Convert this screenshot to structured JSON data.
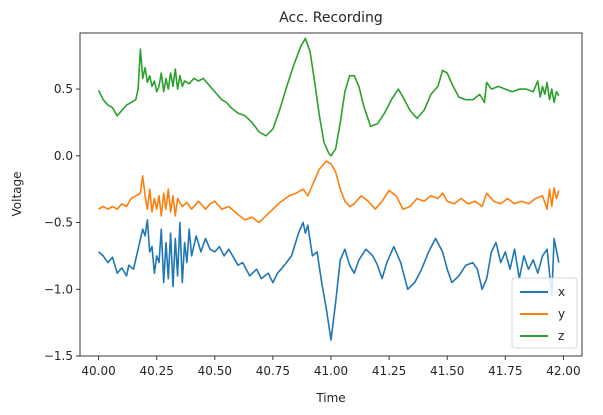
{
  "chart_data": {
    "type": "line",
    "title": "Acc. Recording",
    "xlabel": "Time",
    "ylabel": "Voltage",
    "xlim": [
      39.92,
      42.08
    ],
    "ylim": [
      -1.5,
      0.92
    ],
    "x_ticks": [
      40.0,
      40.25,
      40.5,
      40.75,
      41.0,
      41.25,
      41.5,
      41.75,
      42.0
    ],
    "x_tick_labels": [
      "40.00",
      "40.25",
      "40.50",
      "40.75",
      "41.00",
      "41.25",
      "41.50",
      "41.75",
      "42.00"
    ],
    "y_ticks": [
      -1.5,
      -1.0,
      -0.5,
      0.0,
      0.5
    ],
    "y_tick_labels": [
      "−1.5",
      "−1.0",
      "−0.5",
      "0.0",
      "0.5"
    ],
    "grid": false,
    "legend_position": "bottom-right",
    "series": [
      {
        "name": "x",
        "color": "#1f77b4",
        "points": [
          [
            40.0,
            -0.72
          ],
          [
            40.02,
            -0.75
          ],
          [
            40.04,
            -0.8
          ],
          [
            40.06,
            -0.76
          ],
          [
            40.08,
            -0.88
          ],
          [
            40.1,
            -0.84
          ],
          [
            40.12,
            -0.9
          ],
          [
            40.13,
            -0.82
          ],
          [
            40.15,
            -0.85
          ],
          [
            40.17,
            -0.7
          ],
          [
            40.19,
            -0.55
          ],
          [
            40.2,
            -0.6
          ],
          [
            40.21,
            -0.48
          ],
          [
            40.22,
            -0.72
          ],
          [
            40.23,
            -0.68
          ],
          [
            40.24,
            -0.88
          ],
          [
            40.25,
            -0.75
          ],
          [
            40.26,
            -0.8
          ],
          [
            40.27,
            -0.55
          ],
          [
            40.28,
            -0.95
          ],
          [
            40.29,
            -0.65
          ],
          [
            40.3,
            -0.92
          ],
          [
            40.31,
            -0.58
          ],
          [
            40.32,
            -0.98
          ],
          [
            40.33,
            -0.62
          ],
          [
            40.34,
            -0.9
          ],
          [
            40.35,
            -0.5
          ],
          [
            40.36,
            -0.95
          ],
          [
            40.37,
            -0.65
          ],
          [
            40.38,
            -0.8
          ],
          [
            40.39,
            -0.55
          ],
          [
            40.4,
            -0.75
          ],
          [
            40.42,
            -0.6
          ],
          [
            40.44,
            -0.72
          ],
          [
            40.46,
            -0.62
          ],
          [
            40.48,
            -0.7
          ],
          [
            40.5,
            -0.72
          ],
          [
            40.52,
            -0.68
          ],
          [
            40.54,
            -0.75
          ],
          [
            40.56,
            -0.7
          ],
          [
            40.58,
            -0.76
          ],
          [
            40.6,
            -0.82
          ],
          [
            40.62,
            -0.8
          ],
          [
            40.65,
            -0.9
          ],
          [
            40.68,
            -0.85
          ],
          [
            40.7,
            -0.92
          ],
          [
            40.73,
            -0.88
          ],
          [
            40.75,
            -0.95
          ],
          [
            40.77,
            -0.88
          ],
          [
            40.8,
            -0.82
          ],
          [
            40.83,
            -0.75
          ],
          [
            40.86,
            -0.58
          ],
          [
            40.88,
            -0.5
          ],
          [
            40.89,
            -0.58
          ],
          [
            40.9,
            -0.52
          ],
          [
            40.92,
            -0.75
          ],
          [
            40.94,
            -0.72
          ],
          [
            40.96,
            -0.95
          ],
          [
            40.98,
            -1.15
          ],
          [
            41.0,
            -1.38
          ],
          [
            41.02,
            -1.1
          ],
          [
            41.04,
            -0.78
          ],
          [
            41.06,
            -0.7
          ],
          [
            41.08,
            -0.82
          ],
          [
            41.1,
            -0.88
          ],
          [
            41.12,
            -0.78
          ],
          [
            41.15,
            -0.7
          ],
          [
            41.18,
            -0.75
          ],
          [
            41.2,
            -0.82
          ],
          [
            41.22,
            -0.92
          ],
          [
            41.24,
            -0.8
          ],
          [
            41.27,
            -0.68
          ],
          [
            41.3,
            -0.8
          ],
          [
            41.33,
            -1.0
          ],
          [
            41.36,
            -0.95
          ],
          [
            41.39,
            -0.85
          ],
          [
            41.42,
            -0.72
          ],
          [
            41.45,
            -0.62
          ],
          [
            41.48,
            -0.72
          ],
          [
            41.5,
            -0.85
          ],
          [
            41.52,
            -0.95
          ],
          [
            41.55,
            -0.9
          ],
          [
            41.58,
            -0.82
          ],
          [
            41.61,
            -0.8
          ],
          [
            41.63,
            -0.85
          ],
          [
            41.65,
            -1.0
          ],
          [
            41.67,
            -0.92
          ],
          [
            41.69,
            -0.72
          ],
          [
            41.71,
            -0.65
          ],
          [
            41.73,
            -0.8
          ],
          [
            41.75,
            -0.72
          ],
          [
            41.77,
            -0.85
          ],
          [
            41.79,
            -0.7
          ],
          [
            41.81,
            -0.92
          ],
          [
            41.83,
            -0.75
          ],
          [
            41.85,
            -0.85
          ],
          [
            41.87,
            -0.78
          ],
          [
            41.89,
            -0.88
          ],
          [
            41.91,
            -0.75
          ],
          [
            41.93,
            -0.7
          ],
          [
            41.95,
            -1.05
          ],
          [
            41.96,
            -0.62
          ],
          [
            41.98,
            -0.8
          ]
        ]
      },
      {
        "name": "y",
        "color": "#ff7f0e",
        "points": [
          [
            40.0,
            -0.4
          ],
          [
            40.02,
            -0.38
          ],
          [
            40.04,
            -0.4
          ],
          [
            40.06,
            -0.38
          ],
          [
            40.08,
            -0.4
          ],
          [
            40.1,
            -0.36
          ],
          [
            40.12,
            -0.38
          ],
          [
            40.14,
            -0.32
          ],
          [
            40.16,
            -0.3
          ],
          [
            40.18,
            -0.28
          ],
          [
            40.19,
            -0.15
          ],
          [
            40.2,
            -0.3
          ],
          [
            40.21,
            -0.4
          ],
          [
            40.22,
            -0.25
          ],
          [
            40.23,
            -0.42
          ],
          [
            40.24,
            -0.32
          ],
          [
            40.25,
            -0.4
          ],
          [
            40.26,
            -0.3
          ],
          [
            40.27,
            -0.45
          ],
          [
            40.28,
            -0.28
          ],
          [
            40.29,
            -0.4
          ],
          [
            40.3,
            -0.25
          ],
          [
            40.31,
            -0.42
          ],
          [
            40.32,
            -0.3
          ],
          [
            40.33,
            -0.45
          ],
          [
            40.34,
            -0.32
          ],
          [
            40.36,
            -0.38
          ],
          [
            40.38,
            -0.35
          ],
          [
            40.4,
            -0.4
          ],
          [
            40.43,
            -0.34
          ],
          [
            40.46,
            -0.4
          ],
          [
            40.48,
            -0.36
          ],
          [
            40.5,
            -0.34
          ],
          [
            40.53,
            -0.4
          ],
          [
            40.56,
            -0.38
          ],
          [
            40.6,
            -0.44
          ],
          [
            40.63,
            -0.48
          ],
          [
            40.66,
            -0.46
          ],
          [
            40.69,
            -0.5
          ],
          [
            40.72,
            -0.45
          ],
          [
            40.75,
            -0.4
          ],
          [
            40.78,
            -0.35
          ],
          [
            40.82,
            -0.3
          ],
          [
            40.85,
            -0.28
          ],
          [
            40.88,
            -0.25
          ],
          [
            40.9,
            -0.3
          ],
          [
            40.92,
            -0.22
          ],
          [
            40.95,
            -0.1
          ],
          [
            40.98,
            -0.04
          ],
          [
            41.0,
            -0.06
          ],
          [
            41.02,
            -0.12
          ],
          [
            41.04,
            -0.25
          ],
          [
            41.06,
            -0.34
          ],
          [
            41.08,
            -0.38
          ],
          [
            41.1,
            -0.36
          ],
          [
            41.13,
            -0.3
          ],
          [
            41.16,
            -0.34
          ],
          [
            41.19,
            -0.4
          ],
          [
            41.22,
            -0.34
          ],
          [
            41.25,
            -0.26
          ],
          [
            41.28,
            -0.3
          ],
          [
            41.31,
            -0.4
          ],
          [
            41.34,
            -0.38
          ],
          [
            41.37,
            -0.32
          ],
          [
            41.4,
            -0.34
          ],
          [
            41.43,
            -0.3
          ],
          [
            41.46,
            -0.32
          ],
          [
            41.48,
            -0.28
          ],
          [
            41.5,
            -0.34
          ],
          [
            41.53,
            -0.36
          ],
          [
            41.56,
            -0.32
          ],
          [
            41.59,
            -0.36
          ],
          [
            41.62,
            -0.34
          ],
          [
            41.65,
            -0.38
          ],
          [
            41.67,
            -0.28
          ],
          [
            41.7,
            -0.34
          ],
          [
            41.73,
            -0.36
          ],
          [
            41.76,
            -0.32
          ],
          [
            41.79,
            -0.36
          ],
          [
            41.82,
            -0.34
          ],
          [
            41.85,
            -0.36
          ],
          [
            41.88,
            -0.32
          ],
          [
            41.91,
            -0.3
          ],
          [
            41.93,
            -0.4
          ],
          [
            41.94,
            -0.25
          ],
          [
            41.95,
            -0.38
          ],
          [
            41.96,
            -0.24
          ],
          [
            41.97,
            -0.32
          ],
          [
            41.98,
            -0.26
          ]
        ]
      },
      {
        "name": "z",
        "color": "#2ca02c",
        "points": [
          [
            40.0,
            0.49
          ],
          [
            40.02,
            0.42
          ],
          [
            40.04,
            0.38
          ],
          [
            40.06,
            0.36
          ],
          [
            40.08,
            0.3
          ],
          [
            40.1,
            0.34
          ],
          [
            40.12,
            0.38
          ],
          [
            40.14,
            0.4
          ],
          [
            40.16,
            0.42
          ],
          [
            40.17,
            0.5
          ],
          [
            40.18,
            0.8
          ],
          [
            40.19,
            0.58
          ],
          [
            40.2,
            0.66
          ],
          [
            40.21,
            0.55
          ],
          [
            40.22,
            0.6
          ],
          [
            40.23,
            0.52
          ],
          [
            40.24,
            0.56
          ],
          [
            40.25,
            0.48
          ],
          [
            40.26,
            0.52
          ],
          [
            40.27,
            0.62
          ],
          [
            40.28,
            0.48
          ],
          [
            40.29,
            0.58
          ],
          [
            40.3,
            0.5
          ],
          [
            40.31,
            0.62
          ],
          [
            40.32,
            0.52
          ],
          [
            40.33,
            0.65
          ],
          [
            40.34,
            0.5
          ],
          [
            40.35,
            0.6
          ],
          [
            40.36,
            0.52
          ],
          [
            40.37,
            0.56
          ],
          [
            40.39,
            0.54
          ],
          [
            40.41,
            0.58
          ],
          [
            40.43,
            0.56
          ],
          [
            40.45,
            0.58
          ],
          [
            40.47,
            0.54
          ],
          [
            40.49,
            0.5
          ],
          [
            40.51,
            0.46
          ],
          [
            40.53,
            0.42
          ],
          [
            40.55,
            0.4
          ],
          [
            40.57,
            0.36
          ],
          [
            40.6,
            0.32
          ],
          [
            40.63,
            0.3
          ],
          [
            40.66,
            0.25
          ],
          [
            40.69,
            0.18
          ],
          [
            40.72,
            0.15
          ],
          [
            40.75,
            0.2
          ],
          [
            40.78,
            0.35
          ],
          [
            40.81,
            0.52
          ],
          [
            40.84,
            0.68
          ],
          [
            40.87,
            0.82
          ],
          [
            40.89,
            0.88
          ],
          [
            40.91,
            0.78
          ],
          [
            40.93,
            0.55
          ],
          [
            40.95,
            0.3
          ],
          [
            40.97,
            0.1
          ],
          [
            40.99,
            0.02
          ],
          [
            41.0,
            0.0
          ],
          [
            41.02,
            0.05
          ],
          [
            41.04,
            0.25
          ],
          [
            41.06,
            0.48
          ],
          [
            41.08,
            0.6
          ],
          [
            41.1,
            0.6
          ],
          [
            41.12,
            0.52
          ],
          [
            41.14,
            0.38
          ],
          [
            41.17,
            0.22
          ],
          [
            41.2,
            0.24
          ],
          [
            41.23,
            0.32
          ],
          [
            41.26,
            0.42
          ],
          [
            41.29,
            0.5
          ],
          [
            41.31,
            0.44
          ],
          [
            41.34,
            0.34
          ],
          [
            41.37,
            0.28
          ],
          [
            41.4,
            0.34
          ],
          [
            41.43,
            0.46
          ],
          [
            41.46,
            0.52
          ],
          [
            41.48,
            0.64
          ],
          [
            41.5,
            0.62
          ],
          [
            41.52,
            0.54
          ],
          [
            41.55,
            0.44
          ],
          [
            41.58,
            0.42
          ],
          [
            41.61,
            0.42
          ],
          [
            41.64,
            0.46
          ],
          [
            41.66,
            0.4
          ],
          [
            41.67,
            0.55
          ],
          [
            41.69,
            0.5
          ],
          [
            41.72,
            0.52
          ],
          [
            41.75,
            0.5
          ],
          [
            41.78,
            0.48
          ],
          [
            41.81,
            0.5
          ],
          [
            41.84,
            0.5
          ],
          [
            41.87,
            0.48
          ],
          [
            41.89,
            0.56
          ],
          [
            41.9,
            0.44
          ],
          [
            41.91,
            0.52
          ],
          [
            41.92,
            0.46
          ],
          [
            41.93,
            0.55
          ],
          [
            41.94,
            0.42
          ],
          [
            41.95,
            0.5
          ],
          [
            41.96,
            0.4
          ],
          [
            41.97,
            0.48
          ],
          [
            41.98,
            0.45
          ]
        ]
      }
    ]
  }
}
